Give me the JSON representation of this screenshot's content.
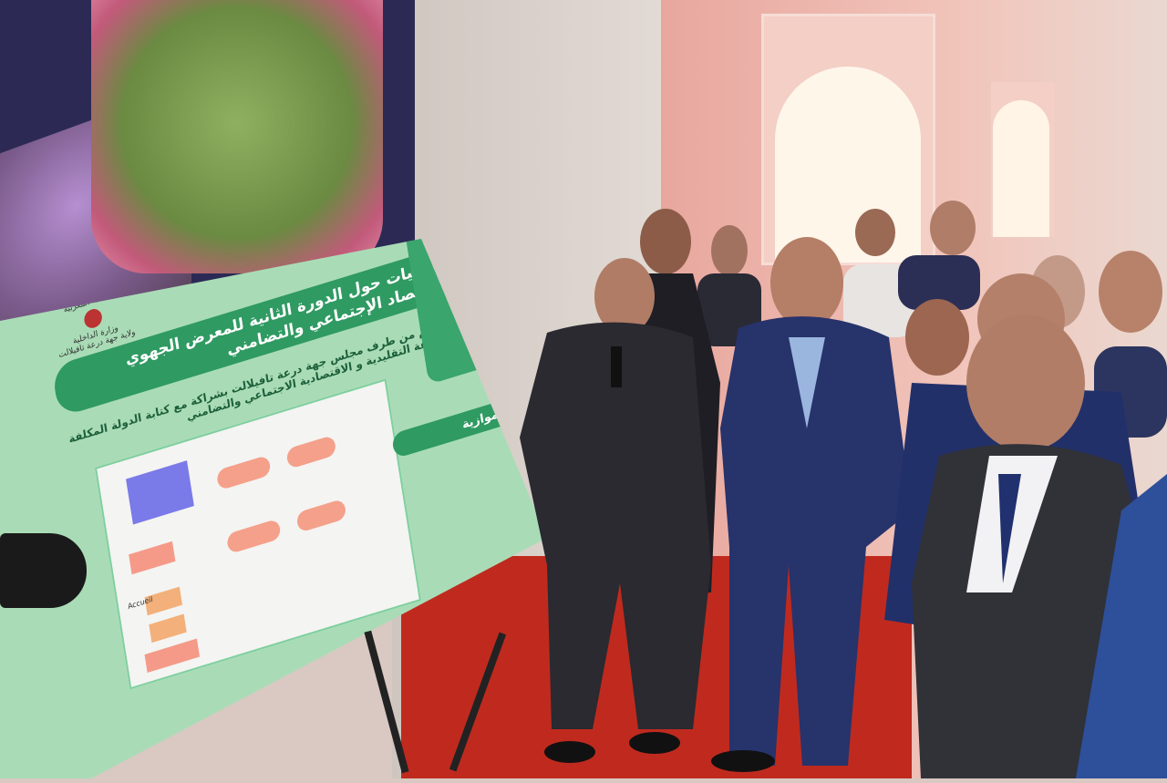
{
  "scene": {
    "description_tags": [
      "exhibition",
      "officials",
      "poster-board",
      "floor-plan"
    ]
  },
  "board": {
    "header_left": [
      "المملكة المغربية",
      "وزارة الداخلية",
      "ولاية جهة درعة تافيلالت"
    ],
    "title": "معطيات حول الدورة الثانية للمعرض الجهوي للإقتصاد الإجتماعي والتضامني",
    "subtitle": "المنظم من طرف مجلس جهة درعة تافيلالت بشراكة مع كتابة الدولة المكلفة بالصناعة التقليدية و الاقتصادية الاجتماعي والتضامني",
    "plan_label": "Accueil",
    "activities_title": "أنشطة موازية"
  },
  "colors": {
    "board_green": "#2f9a62",
    "board_light": "#a9dcb6",
    "floor_red": "#c02a1e",
    "suit_navy": "#27336b"
  }
}
